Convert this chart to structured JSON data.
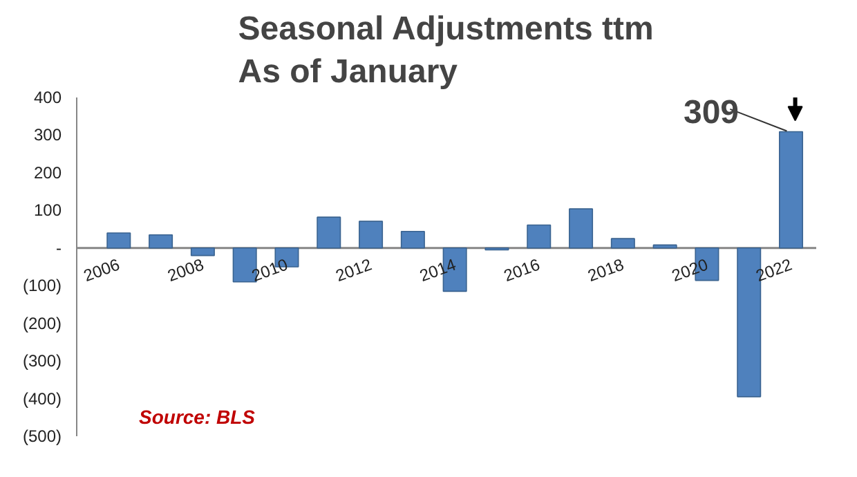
{
  "chart_data": {
    "type": "bar",
    "title": "Seasonal Adjustments ttm\nAs of January",
    "categories": [
      "2006",
      null,
      "2008",
      null,
      "2010",
      null,
      "2012",
      null,
      "2014",
      null,
      "2016",
      null,
      "2018",
      null,
      "2020",
      null,
      "2022"
    ],
    "values": [
      40,
      35,
      -20,
      -90,
      -50,
      82,
      71,
      44,
      -115,
      -5,
      61,
      104,
      25,
      8,
      -86,
      -395,
      309
    ],
    "color": "#4f81bd",
    "ylim": [
      -500,
      400
    ],
    "yticks": [
      {
        "value": -500,
        "label": "(500)"
      },
      {
        "value": -400,
        "label": "(400)"
      },
      {
        "value": -300,
        "label": "(300)"
      },
      {
        "value": -200,
        "label": "(200)"
      },
      {
        "value": -100,
        "label": "(100)"
      },
      {
        "value": 0,
        "label": "-"
      },
      100,
      200,
      300,
      400
    ],
    "grid": false,
    "annotations": [
      {
        "text": "309",
        "x": "2022",
        "y": 309
      },
      "Source: BLS"
    ]
  }
}
